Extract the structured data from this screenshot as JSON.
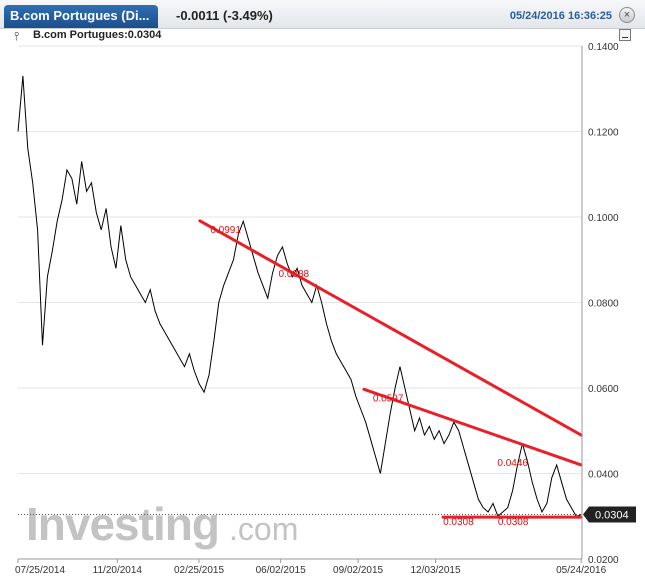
{
  "header": {
    "tab_label": "B.com Portugues (Di...",
    "change": "-0.0011 (-3.49%)",
    "datetime": "05/24/2016 16:36:25",
    "close_icon": "close-icon"
  },
  "subheader": {
    "instrument": "B.com Portugues:0.0304",
    "bar_icon": "bar-chart-icon",
    "minimize_icon": "minimize-icon"
  },
  "watermark": {
    "brand": "Investing",
    "suffix": ".com"
  },
  "chart_data": {
    "type": "line",
    "title": "",
    "ylim": [
      0.02,
      0.14
    ],
    "y_ticks": [
      "0.1400",
      "0.1200",
      "0.1000",
      "0.0800",
      "0.0600",
      "0.0400",
      "0.0200"
    ],
    "x_ticks": [
      "07/25/2014",
      "11/20/2014",
      "02/25/2015",
      "06/02/2015",
      "09/02/2015",
      "12/03/2015",
      "05/24/2016"
    ],
    "x_tick_days": [
      0,
      118,
      215,
      312,
      404,
      496,
      669
    ],
    "x_range_days": [
      0,
      670
    ],
    "last_price": "0.0304",
    "last_value": 0.0304,
    "series": [
      {
        "values": [
          0.12,
          0.133,
          0.116,
          0.108,
          0.097,
          0.07,
          0.086,
          0.092,
          0.099,
          0.104,
          0.111,
          0.109,
          0.103,
          0.113,
          0.106,
          0.108,
          0.101,
          0.097,
          0.102,
          0.093,
          0.088,
          0.098,
          0.09,
          0.086,
          0.084,
          0.082,
          0.08,
          0.083,
          0.078,
          0.075,
          0.073,
          0.071,
          0.069,
          0.067,
          0.065,
          0.068,
          0.064,
          0.061,
          0.059,
          0.063,
          0.071,
          0.08,
          0.084,
          0.087,
          0.09,
          0.096,
          0.099,
          0.095,
          0.091,
          0.087,
          0.084,
          0.081,
          0.087,
          0.091,
          0.093,
          0.089,
          0.086,
          0.088,
          0.084,
          0.082,
          0.08,
          0.084,
          0.08,
          0.075,
          0.071,
          0.068,
          0.066,
          0.064,
          0.062,
          0.058,
          0.055,
          0.052,
          0.048,
          0.044,
          0.04,
          0.047,
          0.054,
          0.06,
          0.065,
          0.06,
          0.055,
          0.05,
          0.053,
          0.049,
          0.051,
          0.048,
          0.05,
          0.047,
          0.049,
          0.052,
          0.05,
          0.046,
          0.042,
          0.038,
          0.034,
          0.032,
          0.031,
          0.033,
          0.03,
          0.031,
          0.032,
          0.036,
          0.042,
          0.047,
          0.043,
          0.038,
          0.034,
          0.031,
          0.033,
          0.039,
          0.042,
          0.038,
          0.034,
          0.032,
          0.03,
          0.0304
        ]
      }
    ],
    "trendlines": [
      {
        "from": {
          "day": 216,
          "value": 0.0991
        },
        "to": {
          "day": 669,
          "value": 0.049
        }
      },
      {
        "from": {
          "day": 411,
          "value": 0.0597
        },
        "to": {
          "day": 669,
          "value": 0.042
        }
      },
      {
        "from": {
          "day": 505,
          "value": 0.0298
        },
        "to": {
          "day": 669,
          "value": 0.0298
        }
      }
    ],
    "annotations": [
      {
        "text": "0.0991",
        "day": 219,
        "value": 0.0991
      },
      {
        "text": "0.0888",
        "day": 300,
        "value": 0.0888
      },
      {
        "text": "0.0597",
        "day": 412,
        "value": 0.0597
      },
      {
        "text": "0.0446",
        "day": 560,
        "value": 0.0446
      },
      {
        "text": "0.0308",
        "day": 505,
        "value": 0.0308
      },
      {
        "text": "0.0308",
        "day": 570,
        "value": 0.0308
      }
    ],
    "colors": {
      "line": "#000000",
      "trend": "#e8202a",
      "annotation": "#d11111",
      "grid": "#e6e6e6"
    }
  }
}
